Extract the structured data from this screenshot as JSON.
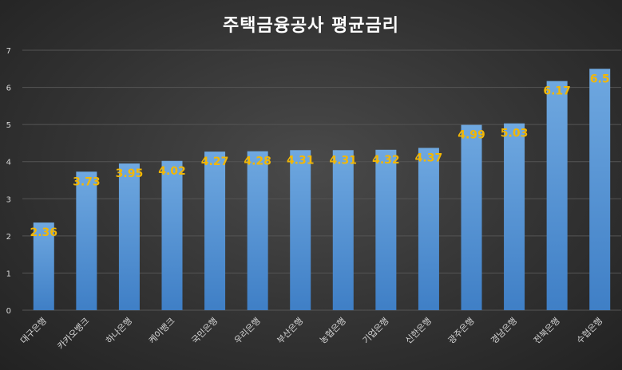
{
  "chart_data": {
    "type": "bar",
    "title": "주택금융공사 평균금리",
    "categories": [
      "대구은행",
      "카카오뱅크",
      "하나은행",
      "케이뱅크",
      "국민은행",
      "우리은행",
      "부산은행",
      "농협은행",
      "기업은행",
      "신한은행",
      "광주은행",
      "경남은행",
      "전북은행",
      "수협은행"
    ],
    "values": [
      2.36,
      3.73,
      3.95,
      4.02,
      4.27,
      4.28,
      4.31,
      4.31,
      4.32,
      4.37,
      4.99,
      5.03,
      6.17,
      6.5
    ],
    "data_labels": [
      "2.36",
      "3.73",
      "3.95",
      "4.02",
      "4.27",
      "4.28",
      "4.31",
      "4.31",
      "4.32",
      "4.37",
      "4.99",
      "5.03",
      "6.17",
      "6.5"
    ],
    "y_ticks": [
      0,
      1,
      2,
      3,
      4,
      5,
      6,
      7
    ],
    "ylim": [
      0,
      7
    ],
    "grid": true,
    "legend": "none",
    "colors": {
      "bar_top": "#6fa8e0",
      "bar_bottom": "#3f7fc6",
      "data_label": "#f2b705",
      "grid": "#555555",
      "axis_text": "#d9d9d9"
    }
  }
}
